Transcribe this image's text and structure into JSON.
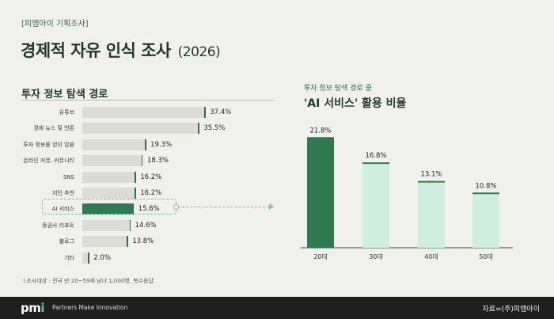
{
  "header": {
    "kicker": "[피앰아이 기획조사]",
    "title": "경제적 자유 인식 조사",
    "year": "(2026)"
  },
  "left_chart_title": "투자 정보 탐색 경로",
  "right_chart_subtitle": "투자 정보 탐색 경로 중",
  "right_chart_title": "'AI 서비스' 활용 비율",
  "chart_data": [
    {
      "type": "bar",
      "orientation": "horizontal",
      "title": "투자 정보 탐색 경로",
      "categories": [
        "유튜브",
        "경제 뉴스 및 언론",
        "투자 정보를 얻지 않음",
        "온라인 커뮤, 커뮤니티",
        "SNS",
        "지인 추천",
        "AI 서비스",
        "증권사 리포트",
        "블로그",
        "기타"
      ],
      "values": [
        37.4,
        35.5,
        19.3,
        18.3,
        16.2,
        16.2,
        15.6,
        14.6,
        13.8,
        2.0
      ],
      "value_labels": [
        "37.4%",
        "35.5%",
        "19.3%",
        "18.3%",
        "16.2%",
        "16.2%",
        "15.6%",
        "14.6%",
        "13.8%",
        "2.0%"
      ],
      "highlight": "AI 서비스",
      "xlim": [
        0,
        40
      ]
    },
    {
      "type": "bar",
      "title": "'AI 서비스' 활용 비율",
      "categories": [
        "20대",
        "30대",
        "40대",
        "50대"
      ],
      "values": [
        21.8,
        16.8,
        13.1,
        10.8
      ],
      "value_labels": [
        "21.8%",
        "16.8%",
        "13.1%",
        "10.8%"
      ],
      "highlight": "20대",
      "ylim": [
        0,
        22
      ]
    }
  ],
  "footnote": "ㅣ조사대상 : 전국 만 20~59세 남녀 1,000명, 복수응답",
  "footer": {
    "logo_main": "pm",
    "logo_accent": "i",
    "tagline": "Partners Make Innovation",
    "source": "자료=(주)피앰아이"
  },
  "colors": {
    "accent": "#2f7a52",
    "bar_gray": "#dcdcd6",
    "bar_light": "#cfeedd",
    "background": "#f0f0ec",
    "footer": "#1f1f1f"
  }
}
